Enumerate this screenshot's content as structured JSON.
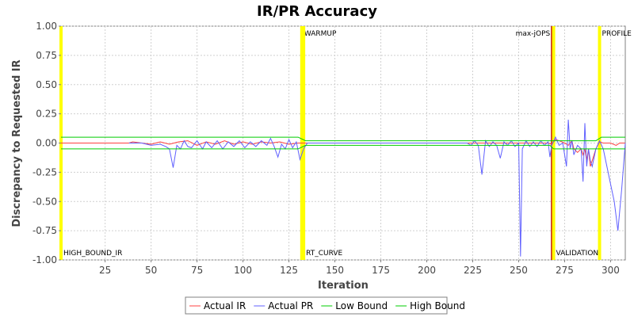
{
  "chart_data": {
    "type": "line",
    "title": "IR/PR Accuracy",
    "xlabel": "Iteration",
    "ylabel": "Discrepancy to Requested IR",
    "xlim": [
      1,
      308
    ],
    "ylim": [
      -1.0,
      1.0
    ],
    "x_ticks": [
      25,
      50,
      75,
      100,
      125,
      150,
      175,
      200,
      225,
      250,
      275,
      300
    ],
    "y_ticks": [
      {
        "value": 1.0,
        "label": "1.00"
      },
      {
        "value": 0.75,
        "label": "0.75"
      },
      {
        "value": 0.5,
        "label": "0.50"
      },
      {
        "value": 0.25,
        "label": "0.25"
      },
      {
        "value": 0.0,
        "label": "0.00"
      },
      {
        "value": -0.25,
        "label": "-0.25"
      },
      {
        "value": -0.5,
        "label": "-0.50"
      },
      {
        "value": -0.75,
        "label": "-0.75"
      },
      {
        "value": -1.0,
        "label": "-1.00"
      }
    ],
    "grid": true,
    "legend_position": "bottom",
    "markers": [
      {
        "label": "HIGH_BOUND_IR",
        "x": 1,
        "color": "#ffff00",
        "label_pos": "bottom"
      },
      {
        "label": "WARMUP",
        "x": 132,
        "color": "#ffff00",
        "label_pos": "top"
      },
      {
        "label": "RT_CURVE",
        "x": 133,
        "color": "#ffff00",
        "label_pos": "bottom"
      },
      {
        "label": "max-jOPS",
        "x": 268,
        "color": "#c00000",
        "label_pos": "top-left"
      },
      {
        "label": "VALIDATION",
        "x": 269,
        "color": "#ffff00",
        "label_pos": "bottom"
      },
      {
        "label": "PROFILE",
        "x": 294,
        "color": "#ffff00",
        "label_pos": "top"
      }
    ],
    "series": [
      {
        "name": "Actual IR",
        "color": "#ff4040",
        "points": [
          [
            1,
            0.0
          ],
          [
            38,
            0.0
          ],
          [
            40,
            0.01
          ],
          [
            45,
            0.0
          ],
          [
            50,
            -0.01
          ],
          [
            55,
            0.01
          ],
          [
            60,
            -0.01
          ],
          [
            65,
            0.01
          ],
          [
            70,
            0.02
          ],
          [
            75,
            -0.02
          ],
          [
            80,
            0.01
          ],
          [
            85,
            -0.01
          ],
          [
            90,
            0.02
          ],
          [
            95,
            -0.01
          ],
          [
            100,
            0.01
          ],
          [
            105,
            -0.01
          ],
          [
            110,
            0.01
          ],
          [
            115,
            0.0
          ],
          [
            120,
            0.01
          ],
          [
            125,
            -0.01
          ],
          [
            130,
            0.0
          ],
          [
            133,
            0.0
          ],
          [
            150,
            0.0
          ],
          [
            175,
            0.0
          ],
          [
            200,
            0.0
          ],
          [
            225,
            0.0
          ],
          [
            240,
            0.0
          ],
          [
            250,
            0.0
          ],
          [
            260,
            0.0
          ],
          [
            266,
            0.0
          ],
          [
            268,
            -0.01
          ],
          [
            270,
            0.03
          ],
          [
            272,
            0.02
          ],
          [
            275,
            0.0
          ],
          [
            277,
            -0.02
          ],
          [
            279,
            0.02
          ],
          [
            280,
            -0.05
          ],
          [
            282,
            -0.08
          ],
          [
            284,
            -0.05
          ],
          [
            285,
            -0.1
          ],
          [
            286,
            -0.05
          ],
          [
            287,
            -0.15
          ],
          [
            288,
            -0.05
          ],
          [
            289,
            -0.2
          ],
          [
            290,
            -0.15
          ],
          [
            291,
            -0.1
          ],
          [
            292,
            -0.05
          ],
          [
            294,
            0.01
          ],
          [
            296,
            0.0
          ],
          [
            300,
            0.0
          ],
          [
            303,
            -0.02
          ],
          [
            305,
            0.0
          ],
          [
            308,
            0.0
          ]
        ]
      },
      {
        "name": "Actual PR",
        "color": "#6060ff",
        "points": [
          [
            38,
            0.0
          ],
          [
            45,
            0.0
          ],
          [
            50,
            -0.02
          ],
          [
            55,
            -0.01
          ],
          [
            58,
            -0.03
          ],
          [
            60,
            -0.05
          ],
          [
            62,
            -0.21
          ],
          [
            64,
            -0.02
          ],
          [
            66,
            -0.05
          ],
          [
            68,
            0.02
          ],
          [
            70,
            -0.03
          ],
          [
            72,
            -0.04
          ],
          [
            75,
            0.02
          ],
          [
            78,
            -0.05
          ],
          [
            80,
            0.01
          ],
          [
            83,
            -0.04
          ],
          [
            86,
            0.02
          ],
          [
            89,
            -0.05
          ],
          [
            92,
            0.01
          ],
          [
            95,
            -0.03
          ],
          [
            98,
            0.02
          ],
          [
            101,
            -0.04
          ],
          [
            104,
            0.01
          ],
          [
            107,
            -0.03
          ],
          [
            110,
            0.02
          ],
          [
            113,
            -0.02
          ],
          [
            115,
            0.04
          ],
          [
            117,
            -0.03
          ],
          [
            119,
            -0.12
          ],
          [
            121,
            -0.01
          ],
          [
            123,
            -0.05
          ],
          [
            125,
            0.03
          ],
          [
            127,
            -0.04
          ],
          [
            129,
            0.01
          ],
          [
            131,
            -0.14
          ],
          [
            133,
            -0.05
          ],
          [
            135,
            0.0
          ],
          [
            150,
            0.0
          ],
          [
            175,
            0.0
          ],
          [
            200,
            0.0
          ],
          [
            222,
            0.0
          ],
          [
            224,
            -0.02
          ],
          [
            226,
            0.02
          ],
          [
            228,
            -0.02
          ],
          [
            230,
            -0.27
          ],
          [
            232,
            0.02
          ],
          [
            234,
            -0.03
          ],
          [
            236,
            0.01
          ],
          [
            238,
            -0.02
          ],
          [
            240,
            -0.13
          ],
          [
            242,
            0.01
          ],
          [
            244,
            -0.02
          ],
          [
            246,
            0.02
          ],
          [
            248,
            -0.03
          ],
          [
            250,
            0.0
          ],
          [
            251,
            -0.97
          ],
          [
            252,
            -0.05
          ],
          [
            254,
            0.02
          ],
          [
            256,
            -0.03
          ],
          [
            258,
            0.01
          ],
          [
            260,
            -0.03
          ],
          [
            262,
            0.02
          ],
          [
            264,
            -0.02
          ],
          [
            266,
            0.01
          ],
          [
            267,
            -0.12
          ],
          [
            268,
            -0.02
          ],
          [
            270,
            0.05
          ],
          [
            272,
            -0.02
          ],
          [
            274,
            0.0
          ],
          [
            276,
            -0.2
          ],
          [
            277,
            0.2
          ],
          [
            278,
            -0.05
          ],
          [
            279,
            0.02
          ],
          [
            280,
            -0.1
          ],
          [
            282,
            -0.02
          ],
          [
            284,
            -0.05
          ],
          [
            285,
            -0.33
          ],
          [
            286,
            0.17
          ],
          [
            287,
            -0.2
          ],
          [
            288,
            -0.05
          ],
          [
            289,
            -0.15
          ],
          [
            290,
            -0.2
          ],
          [
            292,
            -0.05
          ],
          [
            294,
            0.02
          ],
          [
            296,
            -0.05
          ],
          [
            298,
            -0.2
          ],
          [
            300,
            -0.35
          ],
          [
            302,
            -0.5
          ],
          [
            304,
            -0.75
          ],
          [
            306,
            -0.4
          ],
          [
            308,
            0.0
          ]
        ]
      },
      {
        "name": "Low Bound",
        "color": "#00cc00",
        "points": [
          [
            1,
            -0.05
          ],
          [
            130,
            -0.05
          ],
          [
            134,
            -0.02
          ],
          [
            267,
            -0.02
          ],
          [
            269,
            -0.05
          ],
          [
            308,
            -0.05
          ]
        ]
      },
      {
        "name": "High Bound",
        "color": "#00cc00",
        "points": [
          [
            1,
            0.05
          ],
          [
            130,
            0.05
          ],
          [
            134,
            0.02
          ],
          [
            292,
            0.02
          ],
          [
            295,
            0.05
          ],
          [
            308,
            0.05
          ]
        ]
      }
    ]
  }
}
